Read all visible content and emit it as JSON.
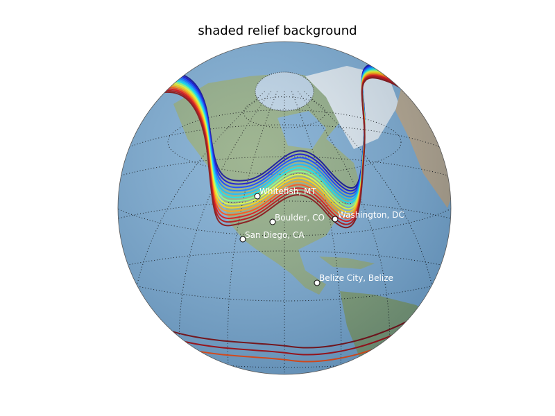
{
  "title": "shaded relief background",
  "cities": [
    {
      "name": "Whitefish, MT"
    },
    {
      "name": "Boulder, CO"
    },
    {
      "name": "San Diego, CA"
    },
    {
      "name": "Washington, DC"
    },
    {
      "name": "Belize City, Belize"
    }
  ],
  "colors": {
    "ocean": "#7aa9cf",
    "land": "#8fa97f",
    "ice": "#e8eef4",
    "graticule": "#000000",
    "contours": [
      "#00008b",
      "#0000cd",
      "#0033ff",
      "#0077ff",
      "#00b7ff",
      "#00e5ee",
      "#7fff7f",
      "#e0ff33",
      "#ffd700",
      "#ff9900",
      "#ff4500",
      "#e00000",
      "#b00000",
      "#800000"
    ]
  },
  "icons": {
    "city_marker": "circle-marker"
  }
}
